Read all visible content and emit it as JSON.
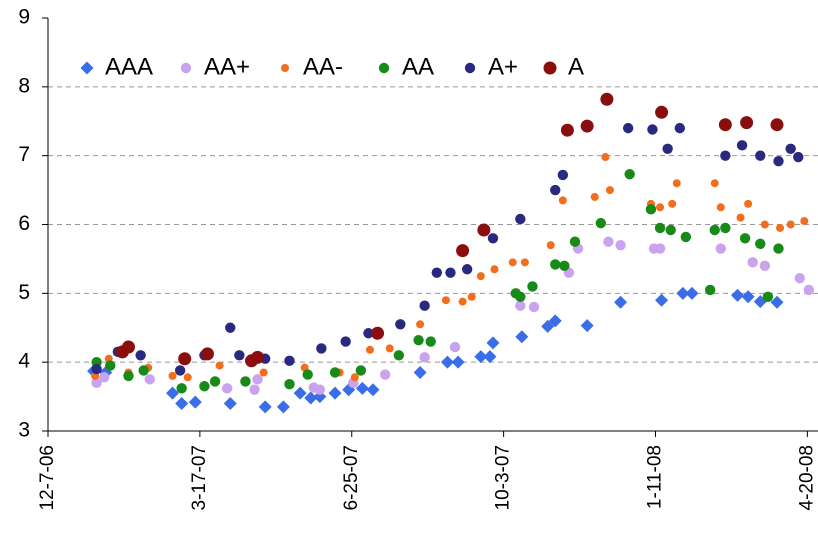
{
  "chart_data": {
    "type": "scatter",
    "xlim": [
      "12-7-06",
      "4-27-08"
    ],
    "xticks": [
      "12-7-06",
      "3-17-07",
      "6-25-07",
      "10-3-07",
      "1-11-08",
      "4-20-08"
    ],
    "ylim": [
      3,
      9
    ],
    "yticks": [
      3,
      4,
      5,
      6,
      7,
      8,
      9
    ],
    "grid": true,
    "legend": "top-left",
    "series": [
      {
        "name": "AAA",
        "color": "#3a6ee8",
        "marker": "diamond",
        "x": [
          "1-6-07",
          "1-14-07",
          "2-27-07",
          "3-5-07",
          "3-14-07",
          "4-6-07",
          "4-29-07",
          "5-11-07",
          "5-22-07",
          "5-29-07",
          "6-4-07",
          "6-14-07",
          "6-23-07",
          "7-2-07",
          "7-9-07",
          "8-9-07",
          "8-27-07",
          "9-3-07",
          "9-18-07",
          "9-24-07",
          "9-26-07",
          "10-15-07",
          "11-1-07",
          "11-6-07",
          "11-27-07",
          "12-19-07",
          "1-15-08",
          "1-29-08",
          "2-4-08",
          "3-5-08",
          "3-12-08",
          "3-20-08",
          "3-31-08"
        ],
        "values": [
          3.87,
          3.85,
          3.55,
          3.4,
          3.42,
          3.4,
          3.35,
          3.35,
          3.55,
          3.48,
          3.5,
          3.55,
          3.6,
          3.62,
          3.6,
          3.85,
          4.0,
          4.0,
          4.08,
          4.08,
          4.28,
          4.37,
          4.52,
          4.6,
          4.53,
          4.87,
          4.9,
          5.0,
          5.0,
          4.97,
          4.95,
          4.88,
          4.87
        ]
      },
      {
        "name": "AA+",
        "color": "#c9a3ee",
        "marker": "circle",
        "x": [
          "1-8-07",
          "1-13-07",
          "2-12-07",
          "4-4-07",
          "4-22-07",
          "4-24-07",
          "5-31-07",
          "6-4-07",
          "6-26-07",
          "7-17-07",
          "8-12-07",
          "9-1-07",
          "10-14-07",
          "10-23-07",
          "11-15-07",
          "11-21-07",
          "12-11-07",
          "12-19-07",
          "1-10-08",
          "1-14-08",
          "2-23-08",
          "3-15-08",
          "3-23-08",
          "4-15-08",
          "4-21-08"
        ],
        "values": [
          3.7,
          3.78,
          3.75,
          3.62,
          3.6,
          3.75,
          3.63,
          3.6,
          3.7,
          3.82,
          4.07,
          4.22,
          4.82,
          4.8,
          5.3,
          5.65,
          5.75,
          5.7,
          5.65,
          5.65,
          5.65,
          5.45,
          5.4,
          5.22,
          5.05
        ]
      },
      {
        "name": "AA-",
        "color": "#f26d1c",
        "marker": "small",
        "x": [
          "1-7-07",
          "1-16-07",
          "1-29-07",
          "2-11-07",
          "2-27-07",
          "3-9-07",
          "3-22-07",
          "3-30-07",
          "4-28-07",
          "5-25-07",
          "6-17-07",
          "6-27-07",
          "7-7-07",
          "7-20-07",
          "8-9-07",
          "8-26-07",
          "9-6-07",
          "9-12-07",
          "9-18-07",
          "9-27-07",
          "10-9-07",
          "10-17-07",
          "11-3-07",
          "11-11-07",
          "12-2-07",
          "12-9-07",
          "12-12-07",
          "1-8-08",
          "1-14-08",
          "1-22-08",
          "1-25-08",
          "2-19-08",
          "2-23-08",
          "3-7-08",
          "3-12-08",
          "3-23-08",
          "4-2-08",
          "4-9-08",
          "4-18-08"
        ],
        "values": [
          3.8,
          4.05,
          3.85,
          3.92,
          3.8,
          3.78,
          4.1,
          3.95,
          3.85,
          3.92,
          3.85,
          3.78,
          4.18,
          4.2,
          4.55,
          4.9,
          4.88,
          4.95,
          5.25,
          5.35,
          5.45,
          5.45,
          5.7,
          6.35,
          6.4,
          6.98,
          6.5,
          6.3,
          6.25,
          6.3,
          6.6,
          6.6,
          6.25,
          6.1,
          6.3,
          6.0,
          5.95,
          6.0,
          6.05
        ]
      },
      {
        "name": "AA",
        "color": "#178a17",
        "marker": "circle",
        "x": [
          "1-8-07",
          "1-17-07",
          "1-29-07",
          "2-8-07",
          "3-5-07",
          "3-20-07",
          "3-27-07",
          "4-16-07",
          "5-15-07",
          "5-27-07",
          "6-14-07",
          "7-1-07",
          "7-26-07",
          "8-8-07",
          "8-16-07",
          "10-11-07",
          "10-14-07",
          "10-22-07",
          "11-6-07",
          "11-12-07",
          "11-19-07",
          "12-6-07",
          "12-25-07",
          "1-8-08",
          "1-14-08",
          "1-21-08",
          "1-31-08",
          "2-16-08",
          "2-19-08",
          "2-26-08",
          "3-10-08",
          "3-20-08",
          "3-25-08",
          "4-1-08"
        ],
        "values": [
          4.0,
          3.95,
          3.8,
          3.88,
          3.62,
          3.65,
          3.72,
          3.72,
          3.68,
          3.82,
          3.85,
          3.88,
          4.1,
          4.32,
          4.3,
          5.0,
          4.95,
          5.1,
          5.42,
          5.4,
          5.75,
          6.02,
          6.73,
          6.22,
          5.95,
          5.92,
          5.82,
          5.05,
          5.92,
          5.95,
          5.8,
          5.72,
          4.95,
          5.65
        ]
      },
      {
        "name": "A+",
        "color": "#29297f",
        "marker": "circle",
        "x": [
          "1-8-07",
          "1-22-07",
          "2-6-07",
          "3-4-07",
          "3-20-07",
          "4-6-07",
          "4-12-07",
          "4-29-07",
          "5-15-07",
          "6-5-07",
          "6-21-07",
          "7-6-07",
          "7-27-07",
          "8-12-07",
          "8-20-07",
          "8-29-07",
          "9-9-07",
          "9-26-07",
          "10-14-07",
          "11-6-07",
          "11-11-07",
          "12-24-07",
          "1-9-08",
          "1-19-08",
          "1-27-08",
          "2-26-08",
          "3-8-08",
          "3-20-08",
          "4-1-08",
          "4-9-08",
          "4-14-08"
        ],
        "values": [
          3.9,
          4.15,
          4.1,
          3.88,
          4.1,
          4.5,
          4.1,
          4.05,
          4.02,
          4.2,
          4.3,
          4.42,
          4.55,
          4.82,
          5.3,
          5.3,
          5.35,
          5.8,
          6.08,
          6.5,
          6.72,
          7.4,
          7.38,
          7.1,
          7.4,
          7.0,
          7.15,
          7.0,
          6.92,
          7.1,
          6.98
        ]
      },
      {
        "name": "A",
        "color": "#8a0e0e",
        "marker": "large",
        "x": [
          "1-25-07",
          "1-29-07",
          "3-7-07",
          "3-22-07",
          "4-20-07",
          "4-24-07",
          "7-12-07",
          "9-6-07",
          "9-20-07",
          "11-14-07",
          "11-27-07",
          "12-10-07",
          "1-15-08",
          "2-26-08",
          "3-11-08",
          "3-31-08"
        ],
        "values": [
          4.15,
          4.22,
          4.05,
          4.12,
          4.02,
          4.07,
          4.42,
          5.62,
          5.92,
          7.37,
          7.43,
          7.82,
          7.63,
          7.45,
          7.48,
          7.45
        ]
      }
    ]
  }
}
